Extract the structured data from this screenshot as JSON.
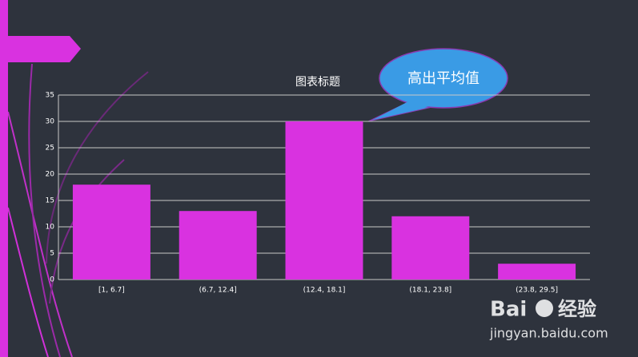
{
  "chart_data": {
    "type": "bar",
    "title": "图表标题",
    "categories": [
      "[1, 6.7]",
      "(6.7, 12.4]",
      "(12.4, 18.1]",
      "(18.1, 23.8]",
      "(23.8, 29.5]"
    ],
    "values": [
      18,
      13,
      30,
      12,
      3
    ],
    "color": "#d932e0",
    "ylim": [
      0,
      35
    ],
    "yticks": [
      0,
      5,
      10,
      15,
      20,
      25,
      30,
      35
    ],
    "grid": true,
    "annotation": "高出平均值"
  },
  "watermark": {
    "brand": "Bai",
    "label": "经验",
    "url": "jingyan.baidu.com"
  }
}
